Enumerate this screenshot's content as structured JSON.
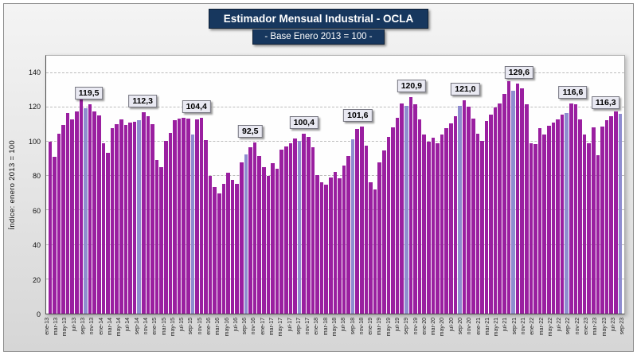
{
  "colors": {
    "bar": "#9A1FA0",
    "bar_highlight": "#8F8CD0",
    "title_bg": "#17375E",
    "grid": "#BCBCBC",
    "plot_bg": "#FEFEFE",
    "frame_bg": "#E4E4E4",
    "callout_bg": "#E9E9F2"
  },
  "chart_data": {
    "type": "bar",
    "title": "Estimador Mensual Industrial - OCLA",
    "subtitle": "- Base Enero 2013 = 100 -",
    "ylabel": "Índice: enero 2013 = 100",
    "xlabel": "",
    "ylim": [
      0,
      150
    ],
    "yticks": [
      0,
      20,
      40,
      60,
      80,
      100,
      120,
      140
    ],
    "grid": true,
    "legend": "none",
    "x_tick_every": 2,
    "x_tick_labels": [
      "ene-13",
      "mar-13",
      "may-13",
      "jul-13",
      "sep-13",
      "nov-13",
      "ene-14",
      "mar-14",
      "may-14",
      "jul-14",
      "sep-14",
      "nov-14",
      "ene-15",
      "mar-15",
      "may-15",
      "jul-15",
      "sep-15",
      "nov-15",
      "ene-16",
      "mar-16",
      "may-16",
      "jul-16",
      "sep-16",
      "nov-16",
      "ene-17",
      "mar-17",
      "may-17",
      "jul-17",
      "sep-17",
      "nov-17",
      "ene-18",
      "mar-18",
      "may-18",
      "jul-18",
      "sep-18",
      "nov-18",
      "ene-19",
      "mar-19",
      "may-19",
      "jul-19",
      "sep-19",
      "nov-19",
      "ene-20",
      "mar-20",
      "may-20",
      "jul-20",
      "sep-20",
      "nov-20",
      "ene-21",
      "mar-21",
      "may-21",
      "jul-21",
      "sep-21",
      "nov-21",
      "ene-22",
      "mar-22",
      "may-22",
      "jul-22",
      "sep-22",
      "nov-22",
      "ene-23",
      "mar-23",
      "may-23",
      "jul-23",
      "sep-23"
    ],
    "values": [
      100.0,
      91.3,
      104.6,
      109.8,
      116.7,
      112.9,
      117.4,
      130.5,
      119.5,
      121.8,
      117.6,
      115.2,
      99.2,
      93.6,
      108.1,
      110.4,
      113.2,
      109.6,
      111.2,
      111.8,
      112.3,
      117.1,
      114.6,
      110.3,
      89.2,
      85.1,
      100.6,
      105.2,
      112.4,
      113.6,
      114.1,
      113.4,
      104.4,
      113.2,
      114.0,
      100.9,
      80.2,
      73.6,
      69.8,
      75.3,
      81.9,
      77.8,
      75.6,
      87.9,
      92.5,
      96.8,
      99.4,
      91.8,
      85.3,
      80.2,
      87.6,
      84.1,
      95.2,
      97.4,
      99.1,
      101.8,
      100.4,
      104.6,
      102.9,
      96.8,
      80.6,
      76.2,
      75.1,
      79.2,
      82.4,
      78.6,
      86.1,
      91.9,
      101.6,
      107.4,
      108.8,
      97.9,
      76.2,
      72.4,
      88.1,
      94.8,
      102.9,
      108.4,
      113.8,
      122.4,
      120.9,
      125.8,
      121.9,
      112.8,
      104.2,
      99.8,
      102.4,
      98.9,
      104.1,
      107.9,
      110.6,
      114.8,
      121.0,
      123.9,
      120.4,
      113.4,
      104.8,
      100.4,
      111.9,
      115.8,
      119.8,
      122.4,
      127.8,
      135.4,
      129.6,
      133.8,
      130.8,
      121.8,
      99.2,
      98.4,
      107.9,
      104.2,
      109.4,
      111.2,
      112.9,
      115.8,
      116.6,
      122.4,
      121.8,
      112.9,
      104.1,
      99.2,
      108.4,
      92.1,
      108.9,
      112.4,
      114.9,
      117.4,
      116.3
    ],
    "highlight_indices": [
      8,
      20,
      32,
      44,
      56,
      68,
      80,
      92,
      104,
      116,
      128
    ],
    "callouts": [
      {
        "index": 8,
        "label": "119,5"
      },
      {
        "index": 20,
        "label": "112,3"
      },
      {
        "index": 32,
        "label": "104,4"
      },
      {
        "index": 44,
        "label": "92,5"
      },
      {
        "index": 56,
        "label": "100,4"
      },
      {
        "index": 68,
        "label": "101,6"
      },
      {
        "index": 80,
        "label": "120,9"
      },
      {
        "index": 92,
        "label": "121,0"
      },
      {
        "index": 104,
        "label": "129,6"
      },
      {
        "index": 116,
        "label": "116,6"
      },
      {
        "index": 128,
        "label": "116,3"
      }
    ]
  }
}
